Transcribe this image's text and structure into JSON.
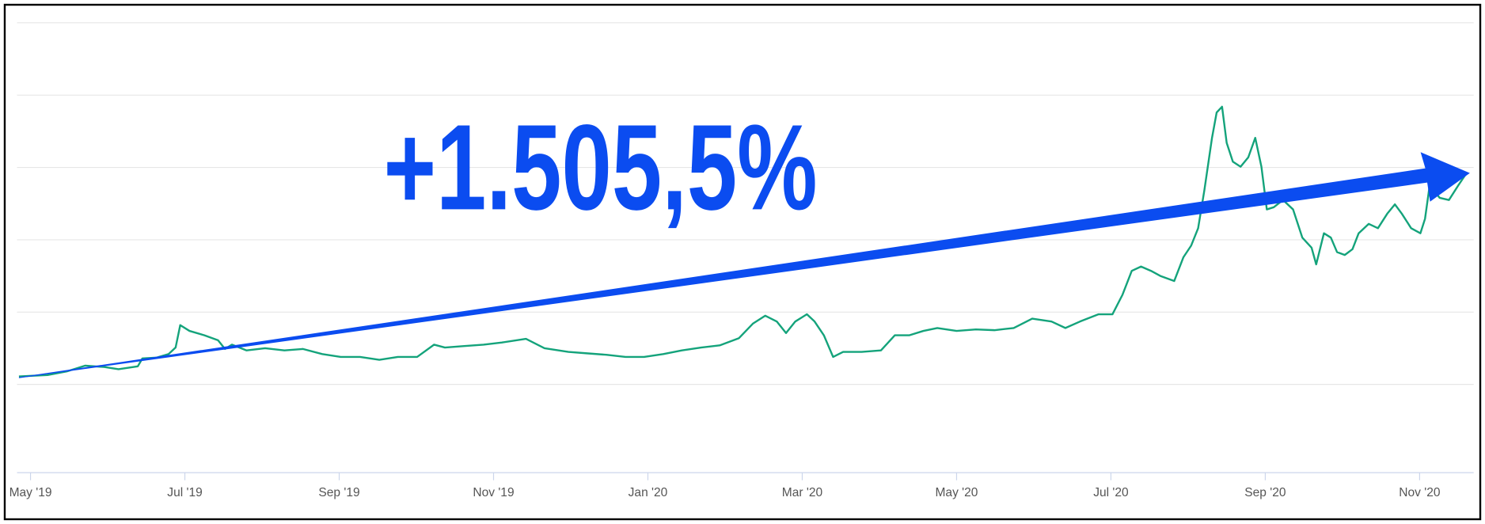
{
  "chart_data": {
    "type": "line",
    "annotation": "+1.505,5%",
    "x": [
      -0.15,
      0.22,
      0.47,
      0.71,
      0.96,
      1.14,
      1.39,
      1.45,
      1.63,
      1.79,
      1.88,
      1.94,
      2.06,
      2.25,
      2.43,
      2.52,
      2.61,
      2.8,
      3.04,
      3.29,
      3.53,
      3.78,
      4.02,
      4.27,
      4.52,
      4.76,
      5.01,
      5.23,
      5.37,
      5.62,
      5.87,
      6.11,
      6.42,
      6.66,
      6.97,
      7.21,
      7.46,
      7.71,
      7.95,
      8.2,
      8.44,
      8.69,
      8.93,
      9.18,
      9.36,
      9.52,
      9.67,
      9.79,
      9.91,
      10.06,
      10.16,
      10.28,
      10.4,
      10.53,
      10.77,
      11.02,
      11.2,
      11.39,
      11.57,
      11.75,
      12.0,
      12.25,
      12.49,
      12.74,
      12.98,
      13.23,
      13.41,
      13.6,
      13.84,
      14.02,
      14.15,
      14.27,
      14.39,
      14.52,
      14.64,
      14.82,
      14.94,
      15.04,
      15.13,
      15.21,
      15.31,
      15.37,
      15.44,
      15.5,
      15.58,
      15.68,
      15.78,
      15.87,
      15.95,
      16.02,
      16.11,
      16.23,
      16.36,
      16.48,
      16.6,
      16.66,
      16.76,
      16.85,
      16.93,
      17.03,
      17.13,
      17.21,
      17.34,
      17.46,
      17.58,
      17.68,
      17.77,
      17.89,
      18.01,
      18.07,
      18.13,
      18.26,
      18.38,
      18.5,
      18.6
    ],
    "series": [
      {
        "color": "#14a37b",
        "values": [
          1.11,
          1.13,
          1.18,
          1.26,
          1.24,
          1.21,
          1.25,
          1.36,
          1.37,
          1.42,
          1.51,
          1.82,
          1.74,
          1.68,
          1.61,
          1.49,
          1.55,
          1.47,
          1.5,
          1.47,
          1.49,
          1.42,
          1.38,
          1.38,
          1.34,
          1.38,
          1.38,
          1.55,
          1.51,
          1.53,
          1.55,
          1.58,
          1.63,
          1.5,
          1.45,
          1.43,
          1.41,
          1.38,
          1.38,
          1.42,
          1.47,
          1.51,
          1.54,
          1.64,
          1.84,
          1.95,
          1.87,
          1.71,
          1.87,
          1.97,
          1.87,
          1.68,
          1.38,
          1.45,
          1.45,
          1.47,
          1.68,
          1.68,
          1.74,
          1.78,
          1.74,
          1.76,
          1.75,
          1.78,
          1.91,
          1.87,
          1.78,
          1.87,
          1.97,
          1.97,
          2.24,
          2.57,
          2.63,
          2.57,
          2.5,
          2.43,
          2.76,
          2.92,
          3.16,
          3.68,
          4.41,
          4.76,
          4.84,
          4.34,
          4.08,
          4.01,
          4.14,
          4.41,
          4.01,
          3.42,
          3.45,
          3.55,
          3.42,
          3.03,
          2.89,
          2.66,
          3.09,
          3.03,
          2.83,
          2.79,
          2.87,
          3.09,
          3.22,
          3.16,
          3.36,
          3.49,
          3.36,
          3.16,
          3.09,
          3.29,
          3.75,
          3.58,
          3.55,
          3.75,
          3.91
        ]
      }
    ],
    "xlim": [
      -0.15,
      18.7
    ],
    "xticks": [
      {
        "value": 0,
        "label": "May '19"
      },
      {
        "value": 2,
        "label": "Jul '19"
      },
      {
        "value": 4,
        "label": "Sep '19"
      },
      {
        "value": 6,
        "label": "Nov '19"
      },
      {
        "value": 8,
        "label": "Jan '20"
      },
      {
        "value": 10,
        "label": "Mar '20"
      },
      {
        "value": 12,
        "label": "May '20"
      },
      {
        "value": 14,
        "label": "Jul '20"
      },
      {
        "value": 16,
        "label": "Sep '20"
      },
      {
        "value": 18,
        "label": "Nov '20"
      }
    ],
    "ylim": [
      -0.22,
      6
    ],
    "yticks": [
      1,
      2,
      3,
      4,
      5,
      6
    ],
    "grid": true
  }
}
